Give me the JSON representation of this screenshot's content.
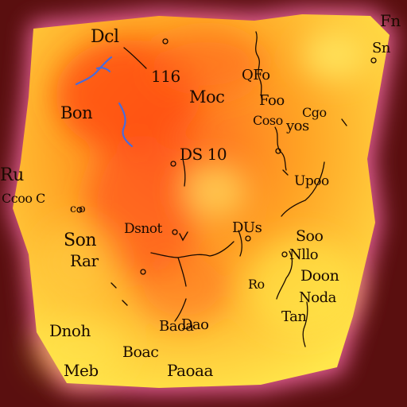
{
  "map": {
    "colors": {
      "background": "#5a0f0f",
      "glow": "#ff6fb0",
      "land_light": "#ffe94a",
      "land_mid": "#ffb020",
      "land_hot": "#ff5a1a",
      "water": "#4a6bd8",
      "ink": "#1a0a00"
    },
    "labels": [
      {
        "id": "label-dcl",
        "text": "Dcl",
        "size": 22
      },
      {
        "id": "label-116",
        "text": "116",
        "size": 20
      },
      {
        "id": "label-moc",
        "text": "Moc",
        "size": 21
      },
      {
        "id": "label-bon",
        "text": "Bon",
        "size": 21
      },
      {
        "id": "label-ds-10",
        "text": "DS 10",
        "size": 20
      },
      {
        "id": "label-ru",
        "text": "Ru",
        "size": 22
      },
      {
        "id": "label-crcn",
        "text": "Ccoo C",
        "size": 16
      },
      {
        "id": "label-ceo",
        "text": "c o",
        "size": 14
      },
      {
        "id": "label-dsnot",
        "text": "Dsnot",
        "size": 17
      },
      {
        "id": "label-dus",
        "text": "DUs",
        "size": 18
      },
      {
        "id": "label-son",
        "text": "Son",
        "size": 22
      },
      {
        "id": "label-rar",
        "text": "Rar",
        "size": 20
      },
      {
        "id": "label-soo",
        "text": "Soo",
        "size": 19
      },
      {
        "id": "label-nlo",
        "text": "Nllo",
        "size": 18
      },
      {
        "id": "label-ro",
        "text": "Ro",
        "size": 16
      },
      {
        "id": "label-doon",
        "text": "Doon",
        "size": 19
      },
      {
        "id": "label-noda",
        "text": "Noda",
        "size": 18
      },
      {
        "id": "label-dnoh",
        "text": "Dnoh",
        "size": 20
      },
      {
        "id": "label-tan",
        "text": "Tan",
        "size": 18
      },
      {
        "id": "label-baoa",
        "text": "Baoa",
        "size": 18
      },
      {
        "id": "label-boac",
        "text": "Boac",
        "size": 19
      },
      {
        "id": "label-meb",
        "text": "Meb",
        "size": 20
      },
      {
        "id": "label-paoaa",
        "text": "Paoaa",
        "size": 20
      },
      {
        "id": "label-fn",
        "text": "Fn",
        "size": 20
      },
      {
        "id": "label-sn",
        "text": "Sn",
        "size": 18
      },
      {
        "id": "label-qfo",
        "text": "QFo",
        "size": 18
      },
      {
        "id": "label-foo",
        "text": "Foo",
        "size": 18
      },
      {
        "id": "label-yos",
        "text": "yos",
        "size": 18
      },
      {
        "id": "label-cgo",
        "text": "Cgo",
        "size": 16
      },
      {
        "id": "label-upco",
        "text": "Upoo",
        "size": 17
      },
      {
        "id": "label-dan",
        "text": "Dao",
        "size": 18
      },
      {
        "id": "label-coso",
        "text": "Coso",
        "size": 16
      }
    ]
  }
}
